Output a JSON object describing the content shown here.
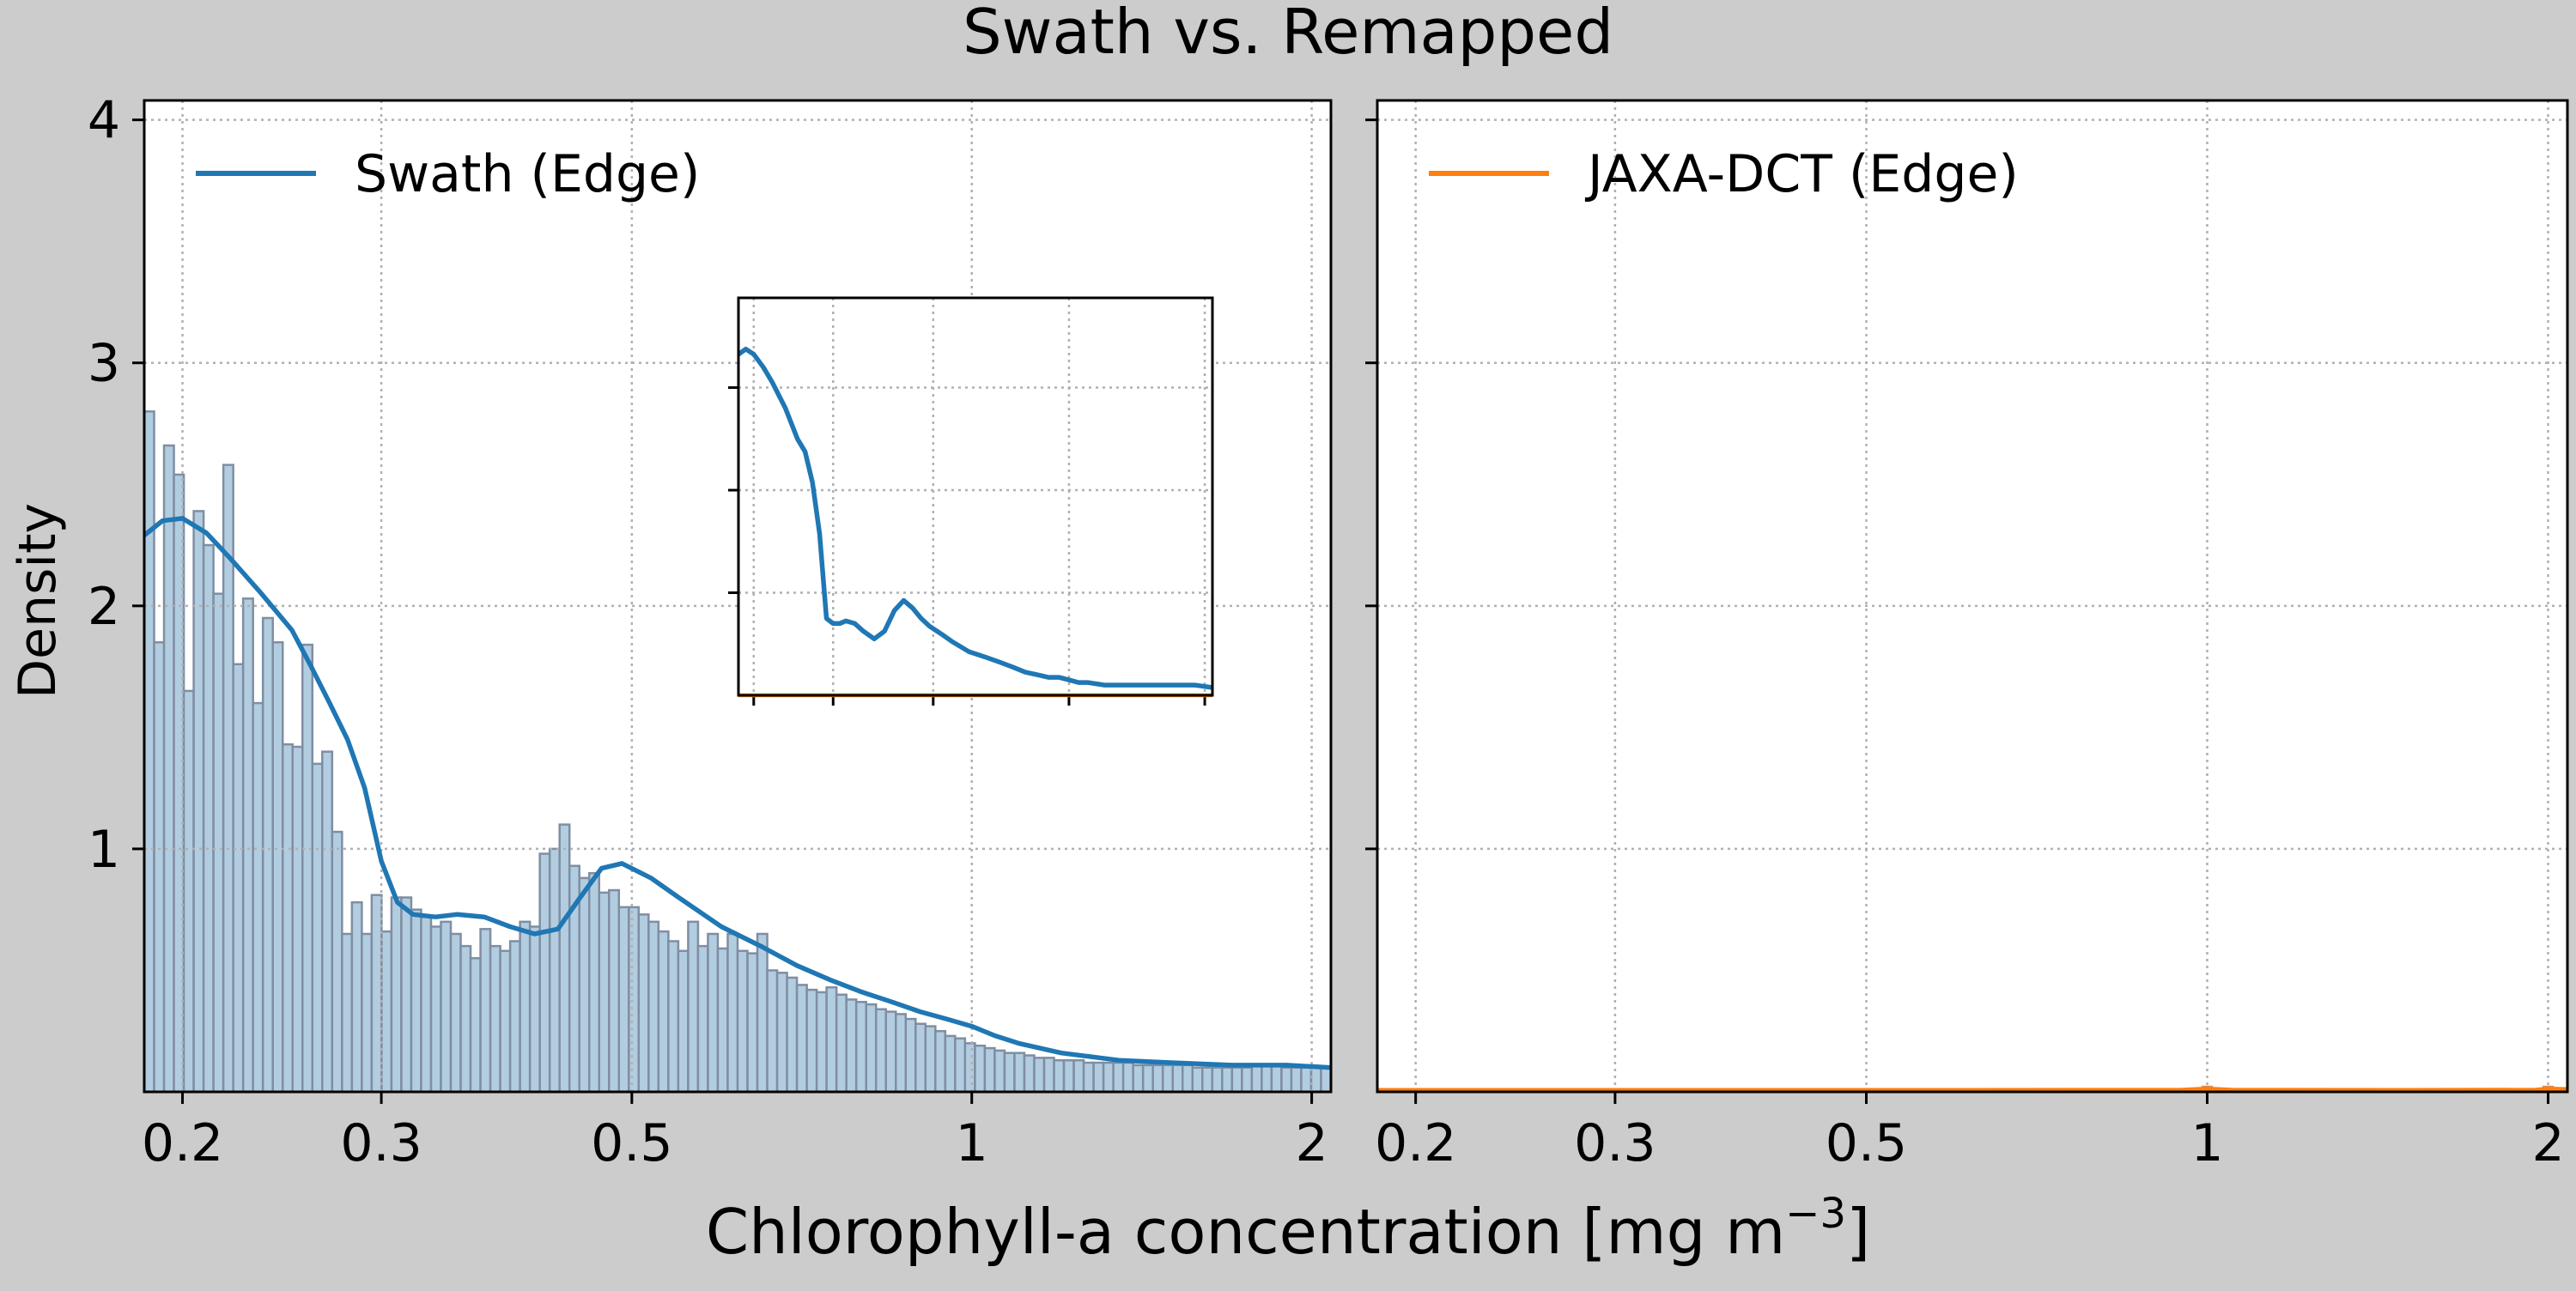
{
  "figure": {
    "title": "Swath vs. Remapped",
    "xlabel_main": "Chlorophyll-a concentration [mg m",
    "xlabel_exp": "−3",
    "xlabel_close": "]",
    "background_color": "#cccccc"
  },
  "chart_data": [
    {
      "type": "histogram+kde",
      "panel": "left",
      "ylabel": "Density",
      "xscale": "log",
      "xlim": [
        0.185,
        2.08
      ],
      "ylim": [
        0,
        4.08
      ],
      "x_ticks": [
        0.2,
        0.3,
        0.5,
        1,
        2
      ],
      "x_tick_labels": [
        "0.2",
        "0.3",
        "0.5",
        "1",
        "2"
      ],
      "y_ticks": [
        1,
        2,
        3,
        4
      ],
      "y_tick_labels": [
        "1",
        "2",
        "3",
        "4"
      ],
      "grid": true,
      "legend": {
        "placement": "top-left",
        "entries": [
          {
            "label": "Swath (Edge)",
            "color": "#1f77b4"
          }
        ]
      },
      "bar_color": "#b3cde0",
      "bar_edge_color": "#7f8ea3",
      "bins": {
        "start": 0.185,
        "end": 2.08,
        "count": 120
      },
      "histogram_heights": [
        2.8,
        1.85,
        2.66,
        2.54,
        1.65,
        2.39,
        2.25,
        2.05,
        2.58,
        1.76,
        2.03,
        1.6,
        1.95,
        1.85,
        1.43,
        1.42,
        1.84,
        1.35,
        1.4,
        1.07,
        0.65,
        0.78,
        0.65,
        0.81,
        0.66,
        0.8,
        0.8,
        0.75,
        0.72,
        0.68,
        0.7,
        0.65,
        0.6,
        0.55,
        0.67,
        0.6,
        0.58,
        0.62,
        0.7,
        0.68,
        0.98,
        1.0,
        1.1,
        0.93,
        0.88,
        0.9,
        0.82,
        0.83,
        0.76,
        0.76,
        0.73,
        0.7,
        0.66,
        0.62,
        0.58,
        0.7,
        0.6,
        0.65,
        0.59,
        0.65,
        0.58,
        0.57,
        0.65,
        0.5,
        0.49,
        0.47,
        0.44,
        0.42,
        0.41,
        0.43,
        0.4,
        0.38,
        0.37,
        0.36,
        0.34,
        0.33,
        0.32,
        0.3,
        0.28,
        0.27,
        0.25,
        0.23,
        0.22,
        0.2,
        0.19,
        0.18,
        0.17,
        0.16,
        0.16,
        0.15,
        0.14,
        0.14,
        0.13,
        0.13,
        0.13,
        0.12,
        0.12,
        0.12,
        0.12,
        0.12,
        0.11,
        0.11,
        0.11,
        0.11,
        0.11,
        0.11,
        0.1,
        0.1,
        0.1,
        0.1,
        0.1,
        0.1,
        0.11,
        0.11,
        0.11,
        0.1,
        0.1,
        0.1,
        0.1,
        0.1
      ],
      "kde": {
        "color": "#1f77b4",
        "x": [
          0.185,
          0.192,
          0.2,
          0.21,
          0.22,
          0.235,
          0.25,
          0.26,
          0.27,
          0.28,
          0.29,
          0.3,
          0.31,
          0.32,
          0.335,
          0.35,
          0.37,
          0.39,
          0.41,
          0.43,
          0.45,
          0.47,
          0.49,
          0.52,
          0.55,
          0.6,
          0.65,
          0.7,
          0.75,
          0.8,
          0.85,
          0.9,
          0.95,
          1.0,
          1.05,
          1.1,
          1.2,
          1.35,
          1.5,
          1.7,
          1.9,
          2.08
        ],
        "y": [
          2.29,
          2.35,
          2.36,
          2.3,
          2.2,
          2.05,
          1.9,
          1.75,
          1.6,
          1.45,
          1.25,
          0.95,
          0.78,
          0.73,
          0.72,
          0.73,
          0.72,
          0.68,
          0.65,
          0.67,
          0.8,
          0.92,
          0.94,
          0.88,
          0.8,
          0.68,
          0.6,
          0.52,
          0.46,
          0.41,
          0.37,
          0.33,
          0.3,
          0.27,
          0.23,
          0.2,
          0.16,
          0.13,
          0.12,
          0.11,
          0.11,
          0.1
        ]
      }
    },
    {
      "type": "histogram+kde",
      "panel": "right",
      "xscale": "log",
      "xlim": [
        0.185,
        2.08
      ],
      "ylim": [
        0,
        4.08
      ],
      "x_ticks": [
        0.2,
        0.3,
        0.5,
        1,
        2
      ],
      "x_tick_labels": [
        "0.2",
        "0.3",
        "0.5",
        "1",
        "2"
      ],
      "y_ticks": [
        1,
        2,
        3,
        4
      ],
      "grid": true,
      "legend": {
        "placement": "top-left",
        "entries": [
          {
            "label": "JAXA-DCT (Edge)",
            "color": "#ff7f0e"
          }
        ]
      },
      "bar_color": "#ffc999",
      "bar_edge_color": "#d99060",
      "spikes": [
        {
          "x": 1.0,
          "height": 0.022
        },
        {
          "x": 2.0,
          "height": 0.022
        }
      ],
      "kde": {
        "color": "#ff7f0e",
        "x": [
          0.185,
          0.5,
          0.95,
          1.0,
          1.05,
          1.5,
          1.95,
          2.0,
          2.08
        ],
        "y": [
          0.006,
          0.006,
          0.007,
          0.012,
          0.007,
          0.006,
          0.007,
          0.012,
          0.01
        ]
      }
    },
    {
      "type": "line",
      "panel": "inset",
      "xscale": "log",
      "xlim": [
        0.185,
        2.08
      ],
      "ylim": [
        0.0,
        1.55
      ],
      "grid": true,
      "x_tick_positions": [
        0.2,
        0.3,
        0.5,
        1,
        2
      ],
      "y_tick_positions": [
        0.4,
        0.8,
        1.2
      ],
      "series": [
        {
          "color": "#1f77b4",
          "x": [
            0.185,
            0.192,
            0.2,
            0.21,
            0.22,
            0.235,
            0.25,
            0.26,
            0.27,
            0.28,
            0.29,
            0.3,
            0.31,
            0.32,
            0.335,
            0.35,
            0.37,
            0.39,
            0.41,
            0.43,
            0.45,
            0.47,
            0.49,
            0.52,
            0.55,
            0.6,
            0.65,
            0.7,
            0.75,
            0.8,
            0.85,
            0.9,
            0.95,
            1.0,
            1.05,
            1.1,
            1.2,
            1.35,
            1.5,
            1.7,
            1.9,
            2.08
          ],
          "y": [
            1.33,
            1.35,
            1.33,
            1.28,
            1.22,
            1.12,
            1.0,
            0.95,
            0.83,
            0.63,
            0.3,
            0.28,
            0.28,
            0.29,
            0.28,
            0.25,
            0.22,
            0.25,
            0.33,
            0.37,
            0.34,
            0.3,
            0.27,
            0.24,
            0.21,
            0.17,
            0.15,
            0.13,
            0.11,
            0.09,
            0.08,
            0.07,
            0.07,
            0.06,
            0.05,
            0.05,
            0.04,
            0.04,
            0.04,
            0.04,
            0.04,
            0.03
          ]
        },
        {
          "color": "#ff7f0e",
          "x": [
            0.185,
            2.08
          ],
          "y": [
            0.0,
            0.0
          ]
        }
      ]
    }
  ]
}
